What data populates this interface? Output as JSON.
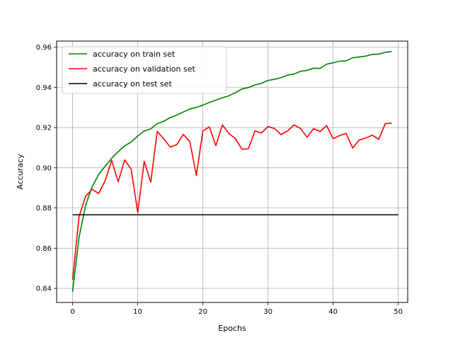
{
  "chart_data": {
    "type": "line",
    "xlabel": "Epochs",
    "ylabel": "Accuracy",
    "xlim": [
      -2.45,
      51.45
    ],
    "ylim": [
      0.833,
      0.963
    ],
    "xticks": [
      0,
      10,
      20,
      30,
      40,
      50
    ],
    "yticks": [
      0.84,
      0.86,
      0.88,
      0.9,
      0.92,
      0.94,
      0.96
    ],
    "xtick_labels": [
      "0",
      "10",
      "20",
      "30",
      "40",
      "50"
    ],
    "ytick_labels": [
      "0.84",
      "0.86",
      "0.88",
      "0.90",
      "0.92",
      "0.94",
      "0.96"
    ],
    "grid": true,
    "legend_position": "upper-left",
    "series": [
      {
        "name": "accuracy on train set",
        "color": "#008000",
        "x": [
          0,
          1,
          2,
          3,
          4,
          5,
          6,
          7,
          8,
          9,
          10,
          11,
          12,
          13,
          14,
          15,
          16,
          17,
          18,
          19,
          20,
          21,
          22,
          23,
          24,
          25,
          26,
          27,
          28,
          29,
          30,
          31,
          32,
          33,
          34,
          35,
          36,
          37,
          38,
          39,
          40,
          41,
          42,
          43,
          44,
          45,
          46,
          47,
          48,
          49
        ],
        "y": [
          0.8383,
          0.8655,
          0.8814,
          0.8906,
          0.8966,
          0.9008,
          0.9047,
          0.908,
          0.9109,
          0.9128,
          0.9158,
          0.9183,
          0.9193,
          0.922,
          0.9231,
          0.925,
          0.9262,
          0.9277,
          0.9292,
          0.93,
          0.9311,
          0.9325,
          0.9336,
          0.9348,
          0.9358,
          0.9373,
          0.9392,
          0.9399,
          0.9412,
          0.942,
          0.9434,
          0.944,
          0.9448,
          0.9461,
          0.9466,
          0.948,
          0.9484,
          0.9495,
          0.9494,
          0.9515,
          0.9522,
          0.953,
          0.9532,
          0.9547,
          0.9551,
          0.9555,
          0.9564,
          0.9565,
          0.9574,
          0.9578
        ]
      },
      {
        "name": "accuracy on validation set",
        "color": "#ff0000",
        "x": [
          0,
          1,
          2,
          3,
          4,
          5,
          6,
          7,
          8,
          9,
          10,
          11,
          12,
          13,
          14,
          15,
          16,
          17,
          18,
          19,
          20,
          21,
          22,
          23,
          24,
          25,
          26,
          27,
          28,
          29,
          30,
          31,
          32,
          33,
          34,
          35,
          36,
          37,
          38,
          39,
          40,
          41,
          42,
          43,
          44,
          45,
          46,
          47,
          48,
          49
        ],
        "y": [
          0.8443,
          0.8758,
          0.8858,
          0.8893,
          0.8872,
          0.8935,
          0.9037,
          0.893,
          0.9039,
          0.8993,
          0.8777,
          0.9032,
          0.8928,
          0.9181,
          0.9143,
          0.9103,
          0.9115,
          0.9166,
          0.913,
          0.8962,
          0.9183,
          0.9203,
          0.911,
          0.9213,
          0.917,
          0.9145,
          0.9092,
          0.9095,
          0.9183,
          0.9173,
          0.9205,
          0.9195,
          0.9165,
          0.9183,
          0.9213,
          0.9195,
          0.9152,
          0.9195,
          0.918,
          0.921,
          0.9145,
          0.916,
          0.9171,
          0.9098,
          0.9138,
          0.9148,
          0.9162,
          0.9141,
          0.9219,
          0.9222
        ]
      },
      {
        "name": "accuracy on test set",
        "color": "#000000",
        "x": [
          0,
          50
        ],
        "y": [
          0.8766,
          0.8766
        ]
      }
    ]
  }
}
